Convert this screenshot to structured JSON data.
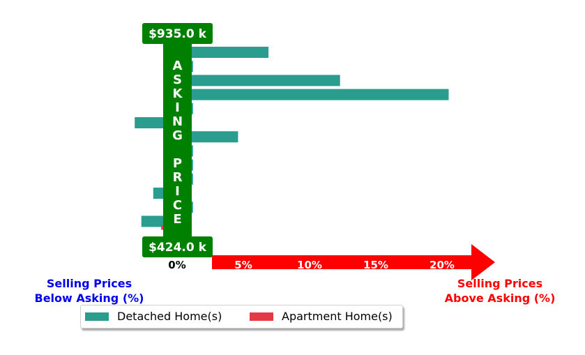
{
  "chart_data": {
    "type": "bar",
    "orientation": "horizontal",
    "xlabel_left": [
      "Selling Prices",
      "Below Asking (%)"
    ],
    "xlabel_right": [
      "Selling Prices",
      "Above Asking (%)"
    ],
    "xlim": [
      -3,
      24
    ],
    "xticks": [
      {
        "value": 0,
        "label": "0%"
      },
      {
        "value": 5,
        "label": "5%"
      },
      {
        "value": 10,
        "label": "10%"
      },
      {
        "value": 15,
        "label": "15%"
      },
      {
        "value": 20,
        "label": "20%"
      }
    ],
    "center_banner": "ASKING PRICE",
    "top_price_label": "$935.0 k",
    "bottom_price_label": "$424.0 k",
    "series": [
      {
        "name": "Detached Home(s)",
        "color": "#2a9d8f",
        "values": [
          6.9,
          1.2,
          12.3,
          20.5,
          1.2,
          -3.2,
          4.6,
          1.2,
          1.2,
          1.2,
          -1.8,
          1.2,
          -2.7
        ]
      },
      {
        "name": "Apartment Home(s)",
        "color": "#e63946",
        "values": [
          0,
          0,
          0,
          0,
          0,
          0,
          0,
          0,
          0,
          0,
          0,
          0,
          -1.2
        ]
      }
    ],
    "colors": {
      "banner": "#008000",
      "arrow": "#ff0000",
      "below_label": "#0000ee",
      "above_label": "#ff0000"
    }
  },
  "legend": {
    "detached_label": "Detached Home(s)",
    "apartment_label": "Apartment Home(s)"
  }
}
